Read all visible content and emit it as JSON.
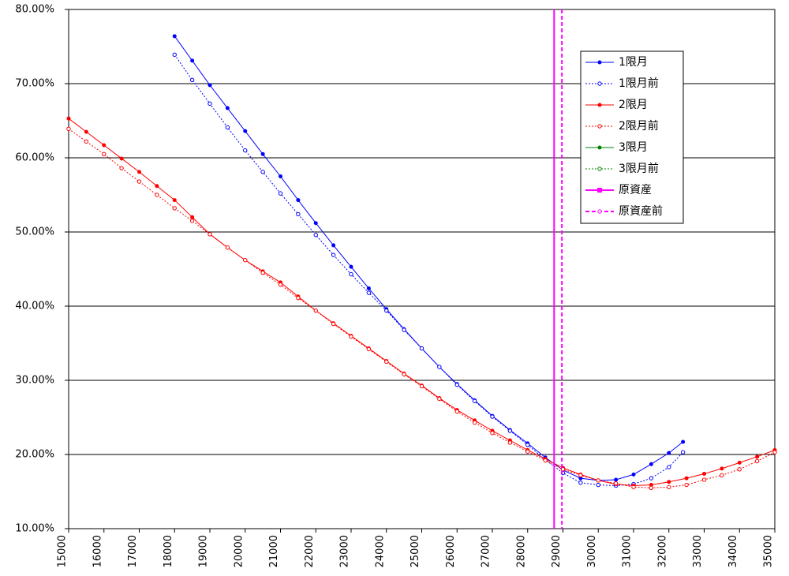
{
  "chart_data": {
    "type": "line",
    "xlim": [
      15000,
      35000
    ],
    "xticks": [
      15000,
      16000,
      17000,
      18000,
      19000,
      20000,
      21000,
      22000,
      23000,
      24000,
      25000,
      26000,
      27000,
      28000,
      29000,
      30000,
      31000,
      32000,
      33000,
      34000,
      35000
    ],
    "ylim": [
      10,
      80
    ],
    "yticks": [
      {
        "value": 10,
        "label": "10.00%"
      },
      {
        "value": 20,
        "label": "20.00%"
      },
      {
        "value": 30,
        "label": "30.00%"
      },
      {
        "value": 40,
        "label": "40.00%"
      },
      {
        "value": 50,
        "label": "50.00%"
      },
      {
        "value": 60,
        "label": "60.00%"
      },
      {
        "value": 70,
        "label": "70.00%"
      },
      {
        "value": 80,
        "label": "80.00%"
      }
    ],
    "grid": true,
    "legend": "upper-right",
    "series": [
      {
        "name": "1限月",
        "color": "#0000ff",
        "dash": false,
        "marker": "filled",
        "x": [
          18000,
          18500,
          19000,
          19500,
          20000,
          20500,
          21000,
          21500,
          22000,
          22500,
          23000,
          23500,
          24000,
          24500,
          25000,
          25500,
          26000,
          26500,
          27000,
          27500,
          28000,
          28500,
          29000,
          29500,
          30000,
          30500,
          31000,
          31500,
          32000,
          32400
        ],
        "values": [
          76.4,
          73.1,
          69.8,
          66.7,
          63.6,
          60.5,
          57.5,
          54.3,
          51.2,
          48.2,
          45.3,
          42.4,
          39.6,
          36.9,
          34.3,
          31.8,
          29.5,
          27.3,
          25.2,
          23.3,
          21.5,
          19.6,
          17.9,
          16.8,
          16.5,
          16.6,
          17.3,
          18.7,
          20.2,
          21.7
        ]
      },
      {
        "name": "1限月前",
        "color": "#0000ff",
        "dash": true,
        "marker": "open",
        "x": [
          18000,
          18500,
          19000,
          19500,
          20000,
          20500,
          21000,
          21500,
          22000,
          22500,
          23000,
          23500,
          24000,
          24500,
          25000,
          25500,
          26000,
          26500,
          27000,
          27500,
          28000,
          28500,
          29000,
          29500,
          30000,
          30500,
          31000,
          31500,
          32000,
          32400
        ],
        "values": [
          73.9,
          70.5,
          67.3,
          64.1,
          61.0,
          58.1,
          55.2,
          52.4,
          49.6,
          46.9,
          44.3,
          41.8,
          39.4,
          36.8,
          34.3,
          31.8,
          29.4,
          27.2,
          25.1,
          23.2,
          21.3,
          19.3,
          17.5,
          16.2,
          15.9,
          15.8,
          16.0,
          16.8,
          18.3,
          20.3
        ]
      },
      {
        "name": "2限月",
        "color": "#ff0000",
        "dash": false,
        "marker": "filled",
        "x": [
          15000,
          15500,
          16000,
          16500,
          17000,
          17500,
          18000,
          18500,
          19000,
          19500,
          20000,
          20500,
          21000,
          21500,
          22000,
          22500,
          23000,
          23500,
          24000,
          24500,
          25000,
          25500,
          26000,
          26500,
          27000,
          27500,
          28000,
          28500,
          29000,
          29500,
          30000,
          30500,
          31000,
          31500,
          32000,
          32500,
          33000,
          33500,
          34000,
          34500,
          35000
        ],
        "values": [
          65.3,
          63.5,
          61.7,
          59.9,
          58.1,
          56.2,
          54.3,
          52.0,
          49.7,
          47.9,
          46.2,
          44.7,
          43.2,
          41.3,
          39.4,
          37.7,
          36.0,
          34.3,
          32.6,
          30.9,
          29.3,
          27.6,
          26.0,
          24.6,
          23.2,
          21.9,
          20.6,
          19.4,
          18.2,
          17.3,
          16.5,
          16.0,
          15.8,
          15.9,
          16.3,
          16.8,
          17.4,
          18.1,
          18.9,
          19.7,
          20.6
        ]
      },
      {
        "name": "2限月前",
        "color": "#ff0000",
        "dash": true,
        "marker": "open",
        "x": [
          15000,
          15500,
          16000,
          16500,
          17000,
          17500,
          18000,
          18500,
          19000,
          19500,
          20000,
          20500,
          21000,
          21500,
          22000,
          22500,
          23000,
          23500,
          24000,
          24500,
          25000,
          25500,
          26000,
          26500,
          27000,
          27500,
          28000,
          28500,
          29000,
          29500,
          30000,
          30500,
          31000,
          31500,
          32000,
          32500,
          33000,
          33500,
          34000,
          34500,
          35000
        ],
        "values": [
          63.9,
          62.2,
          60.5,
          58.6,
          56.8,
          55.0,
          53.2,
          51.5,
          49.7,
          47.9,
          46.2,
          44.5,
          42.9,
          41.1,
          39.4,
          37.6,
          35.9,
          34.2,
          32.5,
          30.8,
          29.2,
          27.5,
          25.8,
          24.3,
          22.9,
          21.6,
          20.4,
          19.2,
          18.0,
          17.2,
          16.5,
          16.1,
          15.6,
          15.5,
          15.6,
          15.9,
          16.6,
          17.2,
          18.0,
          19.1,
          20.3
        ]
      },
      {
        "name": "3限月",
        "color": "#008000",
        "dash": false,
        "marker": "filled",
        "x": [],
        "values": []
      },
      {
        "name": "3限月前",
        "color": "#008000",
        "dash": true,
        "marker": "open",
        "x": [],
        "values": []
      },
      {
        "name": "原資産",
        "color": "#ff00ff",
        "dash": false,
        "marker": "filled-square",
        "type": "vline",
        "x": 28750
      },
      {
        "name": "原資産前",
        "color": "#ff00ff",
        "dash": true,
        "marker": "open",
        "type": "vline",
        "x": 28970
      }
    ]
  }
}
